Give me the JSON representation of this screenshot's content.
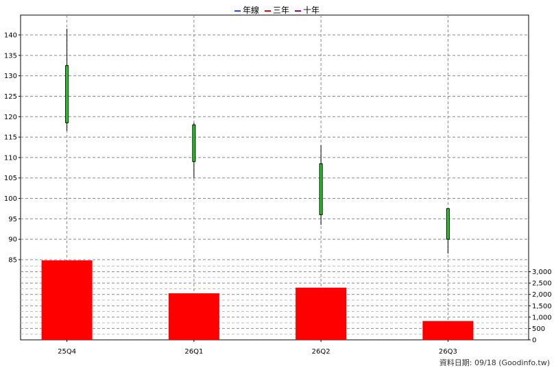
{
  "legend": [
    {
      "label": "年線",
      "color": "#1f4fd8"
    },
    {
      "label": "三年",
      "color": "#e00000"
    },
    {
      "label": "十年",
      "color": "#8b008b"
    }
  ],
  "footer": {
    "source_text": "資料日期: 09/18  (Goodinfo.tw)"
  },
  "chart_data": {
    "type": "candlestick+bar",
    "categories": [
      "25Q4",
      "26Q1",
      "26Q2",
      "26Q3"
    ],
    "price": {
      "ylim": [
        80,
        144
      ],
      "ticks": [
        85,
        90,
        95,
        100,
        105,
        110,
        115,
        120,
        125,
        130,
        135,
        140
      ],
      "candles": [
        {
          "open": 118.5,
          "close": 132.5,
          "high": 141.5,
          "low": 116.5
        },
        {
          "open": 109.0,
          "close": 118.0,
          "high": 118.5,
          "low": 105.0
        },
        {
          "open": 96.0,
          "close": 108.5,
          "high": 113.0,
          "low": 93.5
        },
        {
          "open": 90.0,
          "close": 97.5,
          "high": 97.5,
          "low": 86.5
        }
      ],
      "candle_color": "#22cc22"
    },
    "volume": {
      "values": [
        3500,
        2050,
        2300,
        830
      ],
      "ylim": [
        0,
        3500
      ],
      "ticks": [
        0,
        500,
        1000,
        1500,
        2000,
        2500,
        3000
      ],
      "tick_labels": [
        "0",
        "500",
        "1,000",
        "1,500",
        "2,000",
        "2,500",
        "3,000"
      ],
      "bar_color": "#ff0000"
    },
    "grid": true
  }
}
